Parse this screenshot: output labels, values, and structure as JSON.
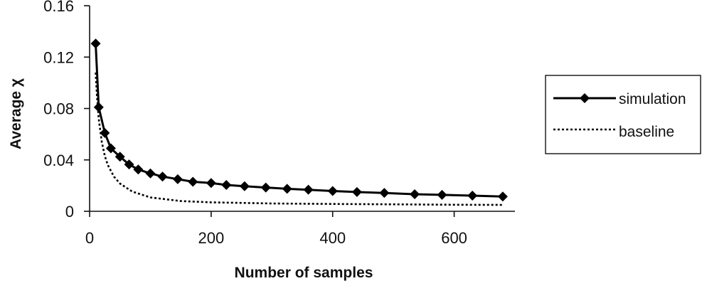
{
  "chart_data": {
    "type": "line",
    "xlabel": "Number of samples",
    "ylabel": "Average χ",
    "xlim": [
      0,
      700
    ],
    "ylim": [
      0,
      0.16
    ],
    "xticks": [
      0,
      200,
      400,
      600
    ],
    "xtick_labels": [
      "0",
      "200",
      "400",
      "600"
    ],
    "yticks": [
      0,
      0.04,
      0.08,
      0.12,
      0.16
    ],
    "ytick_labels": [
      "0",
      "0.04",
      "0.08",
      "0.12",
      "0.16"
    ],
    "grid": false,
    "legend_position": "right",
    "series": [
      {
        "name": "simulation",
        "style": "solid-diamond",
        "color": "#000000",
        "x": [
          10,
          15,
          25,
          35,
          50,
          65,
          80,
          100,
          120,
          145,
          170,
          200,
          225,
          255,
          290,
          325,
          360,
          400,
          440,
          485,
          535,
          580,
          630,
          680
        ],
        "y": [
          0.1305,
          0.081,
          0.061,
          0.049,
          0.0425,
          0.0365,
          0.0325,
          0.0295,
          0.027,
          0.025,
          0.023,
          0.022,
          0.0205,
          0.0195,
          0.0185,
          0.0175,
          0.0168,
          0.0158,
          0.015,
          0.0143,
          0.0133,
          0.0128,
          0.0122,
          0.0115
        ]
      },
      {
        "name": "baseline",
        "style": "dashed",
        "color": "#000000",
        "x": [
          10,
          12,
          15,
          20,
          25,
          30,
          40,
          50,
          70,
          100,
          150,
          200,
          300,
          400,
          500,
          600,
          680
        ],
        "y": [
          0.108,
          0.09,
          0.072,
          0.054,
          0.043,
          0.036,
          0.027,
          0.0216,
          0.0154,
          0.0108,
          0.008,
          0.007,
          0.0061,
          0.0057,
          0.0054,
          0.0051,
          0.005
        ]
      }
    ]
  }
}
